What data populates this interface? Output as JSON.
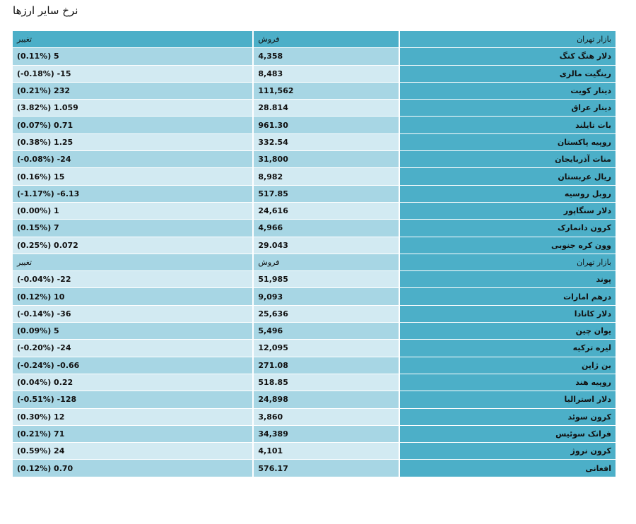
{
  "title": "نرخ سایر ارزها",
  "table1": {
    "header": {
      "market": "بازار تهران",
      "sell": "فروش",
      "change": "تغییر"
    },
    "rows": [
      {
        "name": "دلار هنگ کنگ",
        "sell": "4,358",
        "change": "(0.11%) 5"
      },
      {
        "name": "رینگیت مالزی",
        "sell": "8,483",
        "change": "(-0.18%) -15"
      },
      {
        "name": "دینار کویت",
        "sell": "111,562",
        "change": "(0.21%) 232"
      },
      {
        "name": "دینار عراق",
        "sell": "28.814",
        "change": "(3.82%) 1.059"
      },
      {
        "name": "بات تایلند",
        "sell": "961.30",
        "change": "(0.07%) 0.71"
      },
      {
        "name": "روپیه پاکستان",
        "sell": "332.54",
        "change": "(0.38%) 1.25"
      },
      {
        "name": "منات آذربایجان",
        "sell": "31,800",
        "change": "(-0.08%) -24"
      },
      {
        "name": "ریال عربستان",
        "sell": "8,982",
        "change": "(0.16%) 15"
      },
      {
        "name": "روبل روسیه",
        "sell": "517.85",
        "change": "(-1.17%) -6.13"
      },
      {
        "name": "دلار سنگاپور",
        "sell": "24,616",
        "change": "(0.00%) 1"
      },
      {
        "name": "کرون دانمارک",
        "sell": "4,966",
        "change": "(0.15%) 7"
      },
      {
        "name": "وون کره جنوبی",
        "sell": "29.043",
        "change": "(0.25%) 0.072"
      }
    ]
  },
  "table2": {
    "header": {
      "market": "بازار تهران",
      "sell": "فروش",
      "change": "تغییر"
    },
    "rows": [
      {
        "name": "پوند",
        "sell": "51,985",
        "change": "(-0.04%) -22"
      },
      {
        "name": "درهم امارات",
        "sell": "9,093",
        "change": "(0.12%) 10"
      },
      {
        "name": "دلار کانادا",
        "sell": "25,636",
        "change": "(-0.14%) -36"
      },
      {
        "name": "یوان چین",
        "sell": "5,496",
        "change": "(0.09%) 5"
      },
      {
        "name": "لیره ترکیه",
        "sell": "12,095",
        "change": "(-0.20%) -24"
      },
      {
        "name": "ین ژاپن",
        "sell": "271.08",
        "change": "(-0.24%) -0.66"
      },
      {
        "name": "روپیه هند",
        "sell": "518.85",
        "change": "(0.04%) 0.22"
      },
      {
        "name": "دلار استرالیا",
        "sell": "24,898",
        "change": "(-0.51%) -128"
      },
      {
        "name": "کرون سوئد",
        "sell": "3,860",
        "change": "(0.30%) 12"
      },
      {
        "name": "فرانک سوئیس",
        "sell": "34,389",
        "change": "(0.21%) 71"
      },
      {
        "name": "کرون نروژ",
        "sell": "4,101",
        "change": "(0.59%) 24"
      },
      {
        "name": "افغانی",
        "sell": "576.17",
        "change": "(0.12%) 0.70"
      }
    ]
  }
}
